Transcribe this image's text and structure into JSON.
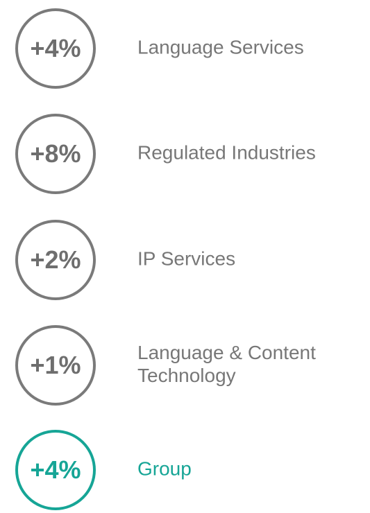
{
  "items": [
    {
      "value": "+4%",
      "label": "Language Services",
      "color": "#7a7a7a"
    },
    {
      "value": "+8%",
      "label": "Regulated Industries",
      "color": "#7a7a7a"
    },
    {
      "value": "+2%",
      "label": "IP Services",
      "color": "#7a7a7a"
    },
    {
      "value": "+1%",
      "label": "Language & Content Technology",
      "color": "#7a7a7a"
    },
    {
      "value": "+4%",
      "label": "Group",
      "color": "#16a596"
    }
  ]
}
